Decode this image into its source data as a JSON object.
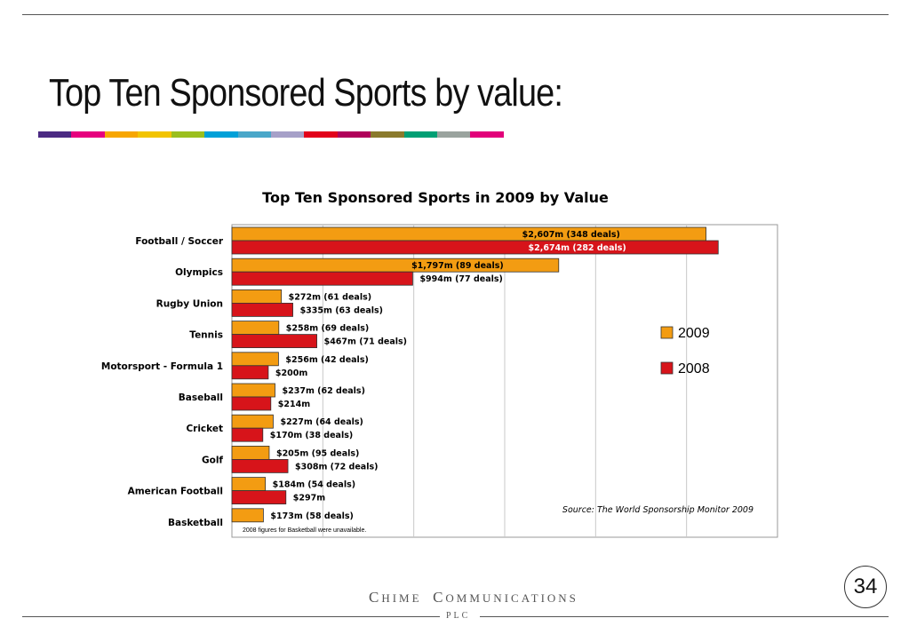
{
  "slide": {
    "title": "Top Ten Sponsored Sports by value:",
    "page_number": "34",
    "company_initial_1": "C",
    "company_rest_1": "HIME",
    "company_initial_2": "C",
    "company_rest_2": "OMMUNICATIONS",
    "company_suffix": "PLC",
    "stripe_colors": [
      "#4b2a83",
      "#e6007e",
      "#f7a600",
      "#f2c400",
      "#9bbf1e",
      "#00a0d8",
      "#4aa7c9",
      "#a6a0c8",
      "#e2001a",
      "#b0005a",
      "#8a7a2c",
      "#009f74",
      "#9aa39e",
      "#e2007a"
    ]
  },
  "chart_data": {
    "type": "bar",
    "orientation": "horizontal",
    "title": "Top Ten Sponsored Sports in 2009 by Value",
    "categories": [
      "Football / Soccer",
      "Olympics",
      "Rugby Union",
      "Tennis",
      "Motorsport - Formula 1",
      "Baseball",
      "Cricket",
      "Golf",
      "American Football",
      "Basketball"
    ],
    "series": [
      {
        "name": "2009",
        "color": "#f39c12",
        "values": [
          2607,
          1797,
          272,
          258,
          256,
          237,
          227,
          205,
          184,
          173
        ],
        "labels": [
          "$2,607m (348 deals)",
          "$1,797m (89 deals)",
          "$272m (61 deals)",
          "$258m (69 deals)",
          "$256m (42 deals)",
          "$237m (62 deals)",
          "$227m (64 deals)",
          "$205m (95 deals)",
          "$184m (54 deals)",
          "$173m (58 deals)"
        ]
      },
      {
        "name": "2008",
        "color": "#d7141a",
        "values": [
          2674,
          994,
          335,
          467,
          200,
          214,
          170,
          308,
          297,
          null
        ],
        "labels": [
          "$2,674m (282 deals)",
          "$994m (77 deals)",
          "$335m (63 deals)",
          "$467m (71 deals)",
          "$200m",
          "$214m",
          "$170m (38 deals)",
          "$308m (72 deals)",
          "$297m",
          ""
        ]
      }
    ],
    "xlim": [
      0,
      3000
    ],
    "grid": true,
    "legend": "right",
    "source": "Source: The World Sponsorship Monitor 2009",
    "footnote": "2008 figures for Basketball were unavailable."
  }
}
